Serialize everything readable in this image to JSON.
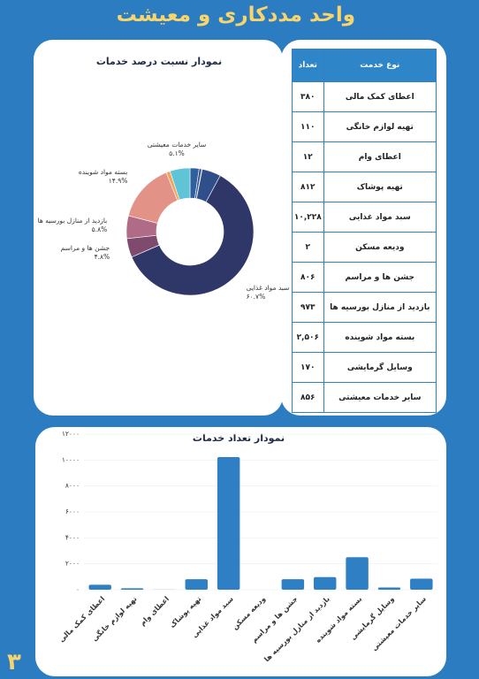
{
  "header": {
    "title": "واحد مددکاری و معیشت"
  },
  "page_number": "۳",
  "table": {
    "columns": [
      "نوع خدمت",
      "تعداد"
    ],
    "rows": [
      [
        "اعطای کمک مالی",
        "۳۸۰"
      ],
      [
        "تهیه لوازم خانگی",
        "۱۱۰"
      ],
      [
        "اعطای وام",
        "۱۲"
      ],
      [
        "تهیه پوشاک",
        "۸۱۲"
      ],
      [
        "سبد مواد غذایی",
        "۱۰,۲۲۸"
      ],
      [
        "ودیعه مسکن",
        "۲"
      ],
      [
        "جشن ها و مراسم",
        "۸۰۶"
      ],
      [
        "بازدید از منازل بورسیه ها",
        "۹۷۳"
      ],
      [
        "بسته مواد شوینده",
        "۲,۵۰۶"
      ],
      [
        "وسایل گرمایشی",
        "۱۷۰"
      ],
      [
        "سایر خدمات معیشتی",
        "۸۵۶"
      ]
    ]
  },
  "chart_data": [
    {
      "type": "pie",
      "title": "نمودار نسبت درصد خدمات",
      "donut": true,
      "categories": [
        null,
        null,
        null,
        null,
        "سبد مواد غذایی",
        null,
        "جشن ها و مراسم",
        "بازدید از منازل بورسیه ها",
        "بسته مواد شوینده",
        null,
        "سایر خدمات معیشتی"
      ],
      "values": [
        2.3,
        0.7,
        0.1,
        4.8,
        60.7,
        0,
        4.8,
        5.8,
        14.9,
        1.0,
        5.1
      ],
      "value_labels": [
        null,
        null,
        null,
        null,
        "۶۰.۷%",
        null,
        "۴.۸%",
        "۵.۸%",
        "۱۴.۹%",
        null,
        "۵.۱%"
      ],
      "colors": [
        "#2f5f9e",
        "#3a5a92",
        "#40508a",
        "#2e4f8a",
        "#2f3768",
        "#6a4a78",
        "#7e4a6e",
        "#b06b86",
        "#e39287",
        "#f2a65a",
        "#5ec4d6"
      ]
    },
    {
      "type": "bar",
      "title": "نمودار تعداد خدمات",
      "categories": [
        "اعطای کمک مالی",
        "تهیه لوازم خانگی",
        "اعطای وام",
        "تهیه پوشاک",
        "سبد مواد غذایی",
        "ودیعه مسکن",
        "جشن ها و مراسم",
        "بازدید از منازل بورسیه ها",
        "بسته مواد شوینده",
        "وسایل گرمایشی",
        "سایر خدمات معیشتی"
      ],
      "values": [
        380,
        110,
        12,
        812,
        10228,
        2,
        806,
        973,
        2506,
        170,
        856
      ],
      "color": "#2e7fc4",
      "grid": true,
      "ylim": [
        0,
        12000
      ],
      "yticks": [
        {
          "value": 0,
          "label": "۰"
        },
        {
          "value": 2000,
          "label": "۲۰۰۰"
        },
        {
          "value": 4000,
          "label": "۴۰۰۰"
        },
        {
          "value": 6000,
          "label": "۶۰۰۰"
        },
        {
          "value": 8000,
          "label": "۸۰۰۰"
        },
        {
          "value": 10000,
          "label": "۱۰۰۰۰"
        },
        {
          "value": 12000,
          "label": "۱۲۰۰۰"
        }
      ]
    }
  ]
}
